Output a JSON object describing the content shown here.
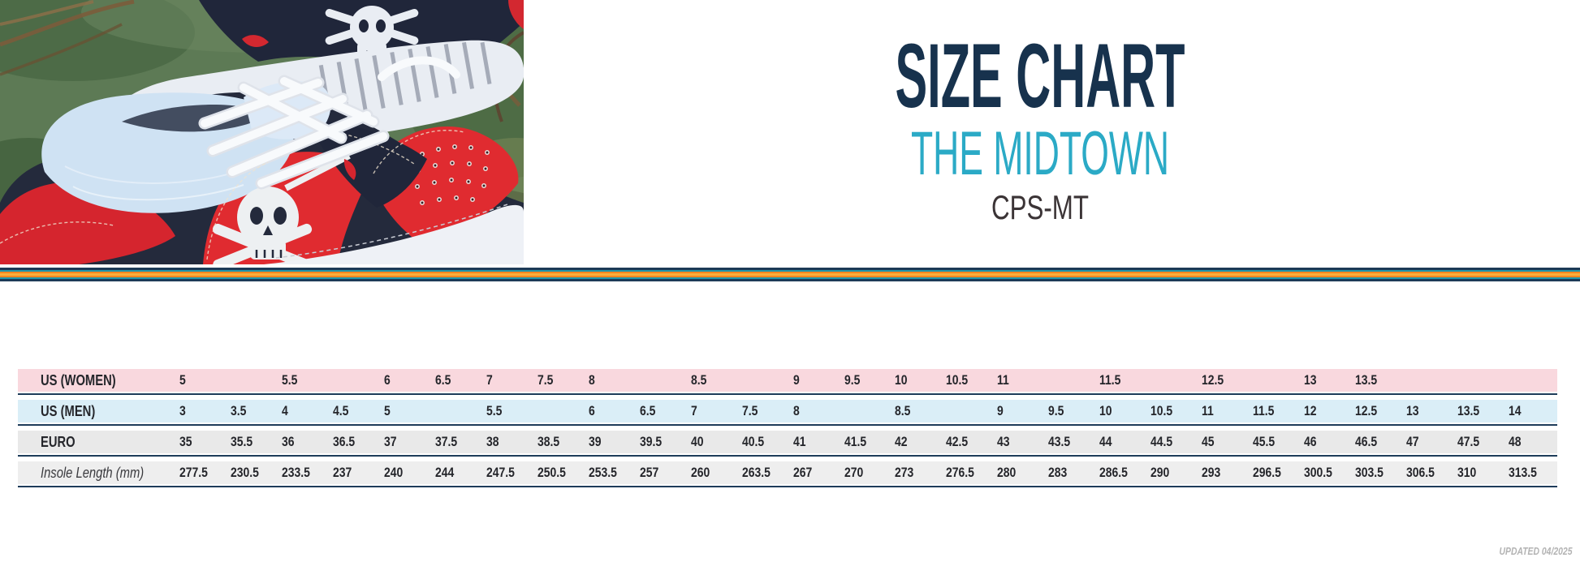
{
  "header": {
    "title": "SIZE CHART",
    "product": "THE MIDTOWN",
    "sku": "CPS-MT"
  },
  "colors": {
    "title_navy": "#17324d",
    "product_teal": "#2baac6",
    "sku_gray": "#3b3436",
    "rule_navy": "#1e3c5a",
    "row_pink": "#f9d8de",
    "row_blue": "#daeef7",
    "row_gray": "#e9e9e9",
    "row_gray_light": "#eeeeee"
  },
  "divider_stripes": [
    {
      "color": "#1c3a57",
      "height": 3
    },
    {
      "color": "#1f96aa",
      "height": 2
    },
    {
      "color": "#f5861e",
      "height": 2
    },
    {
      "color": "#fbae3a",
      "height": 3
    },
    {
      "color": "#f5861e",
      "height": 2
    },
    {
      "color": "#1f96aa",
      "height": 2
    },
    {
      "color": "#1c3a57",
      "height": 3
    }
  ],
  "size_table": {
    "rows": [
      {
        "key": "us-women",
        "label": "US (WOMEN)",
        "bg": "#f9d8de",
        "values": [
          "5",
          "",
          "5.5",
          "",
          "6",
          "6.5",
          "7",
          "7.5",
          "8",
          "",
          "8.5",
          "",
          "9",
          "9.5",
          "10",
          "10.5",
          "11",
          "",
          "11.5",
          "",
          "12.5",
          "",
          "13",
          "13.5",
          "",
          "",
          ""
        ]
      },
      {
        "key": "us-men",
        "label": "US (MEN)",
        "bg": "#daeef7",
        "values": [
          "3",
          "3.5",
          "4",
          "4.5",
          "5",
          "",
          "5.5",
          "",
          "6",
          "6.5",
          "7",
          "7.5",
          "8",
          "",
          "8.5",
          "",
          "9",
          "9.5",
          "10",
          "10.5",
          "11",
          "11.5",
          "12",
          "12.5",
          "13",
          "13.5",
          "14"
        ]
      },
      {
        "key": "euro",
        "label": "EURO",
        "bg": "#e9e9e9",
        "values": [
          "35",
          "35.5",
          "36",
          "36.5",
          "37",
          "37.5",
          "38",
          "38.5",
          "39",
          "39.5",
          "40",
          "40.5",
          "41",
          "41.5",
          "42",
          "42.5",
          "43",
          "43.5",
          "44",
          "44.5",
          "45",
          "45.5",
          "46",
          "46.5",
          "47",
          "47.5",
          "48"
        ]
      },
      {
        "key": "insole-length",
        "label": "Insole Length (mm)",
        "bg": "#eeeeee",
        "values": [
          "277.5",
          "230.5",
          "233.5",
          "237",
          "240",
          "244",
          "247.5",
          "250.5",
          "253.5",
          "257",
          "260",
          "263.5",
          "267",
          "270",
          "273",
          "276.5",
          "280",
          "283",
          "286.5",
          "290",
          "293",
          "296.5",
          "300.5",
          "303.5",
          "306.5",
          "310",
          "313.5"
        ]
      }
    ]
  },
  "footer": {
    "updated": "UPDATED 04/2025"
  }
}
